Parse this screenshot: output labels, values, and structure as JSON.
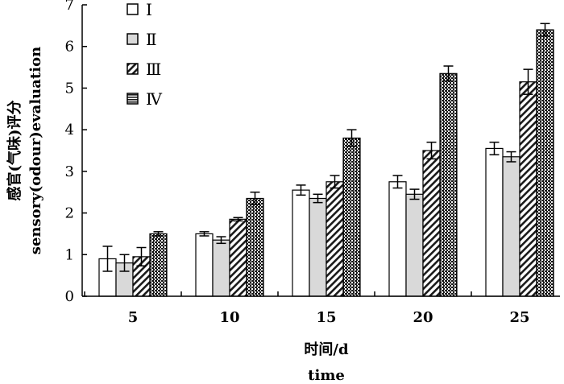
{
  "chart_data": {
    "type": "bar",
    "xlabel_cn": "时间/d",
    "xlabel_en": "time",
    "ylabel_cn": "感官(气味)评分",
    "ylabel_en": "sensory(odour)evaluation",
    "categories": [
      "5",
      "10",
      "15",
      "20",
      "25"
    ],
    "ylim": [
      0,
      7
    ],
    "yticks": [
      "0",
      "1",
      "2",
      "3",
      "4",
      "5",
      "6",
      "7"
    ],
    "legend_position": "top-left",
    "series": [
      {
        "name": "Ⅰ",
        "pattern": "white",
        "values": [
          0.9,
          1.5,
          2.55,
          2.75,
          3.55
        ],
        "errors": [
          0.3,
          0.05,
          0.12,
          0.15,
          0.15
        ]
      },
      {
        "name": "Ⅱ",
        "pattern": "lightgray",
        "values": [
          0.8,
          1.35,
          2.35,
          2.45,
          3.35
        ],
        "errors": [
          0.2,
          0.08,
          0.1,
          0.12,
          0.12
        ]
      },
      {
        "name": "Ⅲ",
        "pattern": "hatch",
        "values": [
          0.95,
          1.85,
          2.75,
          3.5,
          5.15
        ],
        "errors": [
          0.22,
          0.04,
          0.15,
          0.2,
          0.3
        ]
      },
      {
        "name": "Ⅳ",
        "pattern": "dense",
        "values": [
          1.5,
          2.35,
          3.8,
          5.35,
          6.4
        ],
        "errors": [
          0.05,
          0.15,
          0.2,
          0.18,
          0.15
        ]
      }
    ]
  }
}
